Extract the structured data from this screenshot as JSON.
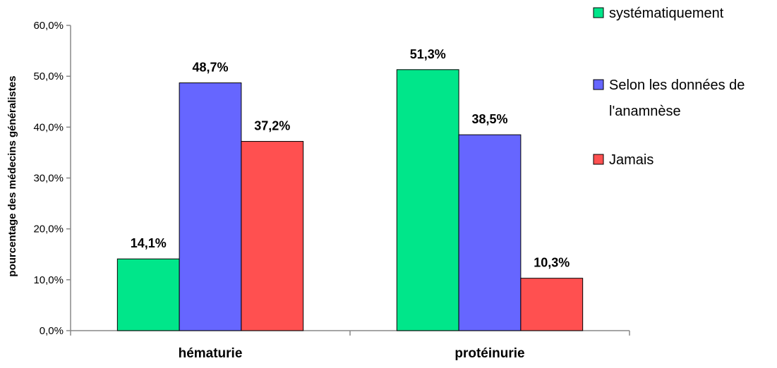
{
  "chart_data": {
    "type": "bar",
    "title": "",
    "xlabel": "",
    "ylabel": "pourcentage des médecins généralistes",
    "categories": [
      "hématurie",
      "protéinurie"
    ],
    "series": [
      {
        "name": "systématiquement",
        "color": "#00e68a",
        "values": [
          14.1,
          51.3
        ],
        "labels": [
          "14,1%",
          "51,3%"
        ]
      },
      {
        "name": "Selon les données de l'anamnèse",
        "legend_lines": [
          "Selon les données de",
          "l'anamnèse"
        ],
        "color": "#6666ff",
        "values": [
          48.7,
          38.5
        ],
        "labels": [
          "48,7%",
          "38,5%"
        ]
      },
      {
        "name": "Jamais",
        "color": "#ff5050",
        "values": [
          37.2,
          10.3
        ],
        "labels": [
          "37,2%",
          "10,3%"
        ]
      }
    ],
    "ylim": [
      0,
      60
    ],
    "yticks": [
      0,
      10,
      20,
      30,
      40,
      50,
      60
    ],
    "ytick_labels": [
      "0,0%",
      "10,0%",
      "20,0%",
      "30,0%",
      "40,0%",
      "50,0%",
      "60,0%"
    ],
    "grid": false,
    "legend_position": "right"
  }
}
